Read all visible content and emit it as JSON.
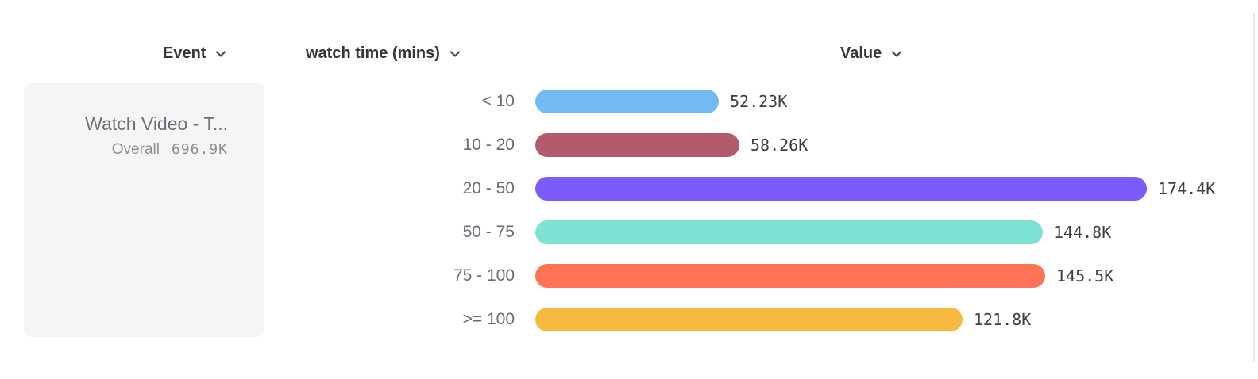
{
  "header": {
    "event_label": "Event",
    "watch_time_label": "watch time (mins)",
    "value_label": "Value"
  },
  "event_card": {
    "title": "Watch Video - T...",
    "overall_label": "Overall",
    "overall_value": "696.9K"
  },
  "chart_data": {
    "type": "bar",
    "orientation": "horizontal",
    "title": "",
    "xlabel": "Value",
    "ylabel": "watch time (mins)",
    "categories": [
      "< 10",
      "10 - 20",
      "20 - 50",
      "50 - 75",
      "75 - 100",
      ">= 100"
    ],
    "values": [
      52230,
      58260,
      174400,
      144800,
      145500,
      121800
    ],
    "value_labels": [
      "52.23K",
      "58.26K",
      "174.4K",
      "144.8K",
      "145.5K",
      "121.8K"
    ],
    "colors": [
      "#74baf2",
      "#b25a6e",
      "#7b5cfa",
      "#7fe0d4",
      "#fe7355",
      "#f7ba3f"
    ],
    "xlim": [
      0,
      174400
    ],
    "grid": false,
    "legend": false
  },
  "colors": {
    "header_text": "#35353b",
    "category_text": "#6a6a72",
    "value_text": "#3d3d44",
    "card_background": "#f5f5f6",
    "card_text": "#70707a"
  }
}
